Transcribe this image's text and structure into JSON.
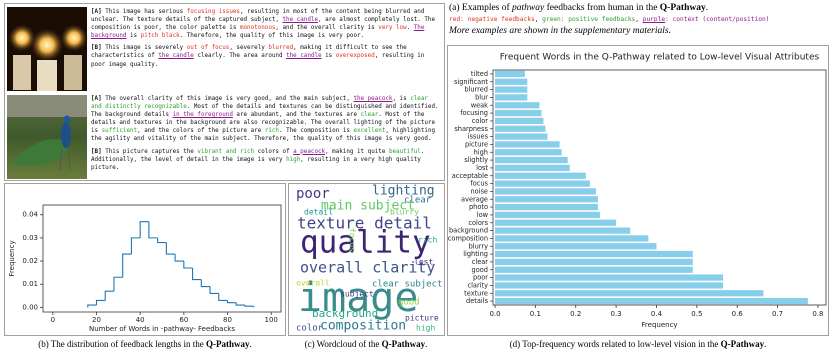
{
  "panel_a": {
    "caption": [
      {
        "text": "(a) Examples of "
      },
      {
        "text": "pathway",
        "style": "italic"
      },
      {
        "text": " feedbacks from human in the "
      },
      {
        "text": "Q-Pathway",
        "style": "bold"
      },
      {
        "text": "."
      }
    ],
    "legend": [
      {
        "text": "red: negative feedbacks",
        "kind": "negative"
      },
      {
        "text": ", "
      },
      {
        "text": "green: positive feedbacks",
        "kind": "positive"
      },
      {
        "text": ", "
      },
      {
        "text": "purple",
        "kind": "context"
      },
      {
        "text": ": context (content/position)",
        "kind": "context-plain"
      }
    ],
    "note": "More examples are shown in the supplementary materials.",
    "examples": [
      {
        "paragraphs": [
          {
            "label": "[A]",
            "segments": [
              {
                "text": "This image has serious "
              },
              {
                "text": "focusing issues",
                "kind": "negative"
              },
              {
                "text": ", resulting in most of the content being blurred and unclear. The texture details of the captured subject, "
              },
              {
                "text": "the candle",
                "kind": "context"
              },
              {
                "text": ", are almost completely lost. The composition is poor, the color palette is "
              },
              {
                "text": "monotonous",
                "kind": "negative"
              },
              {
                "text": ", and the overall clarity is "
              },
              {
                "text": "very low",
                "kind": "negative"
              },
              {
                "text": ". "
              },
              {
                "text": "The background",
                "kind": "context"
              },
              {
                "text": " is "
              },
              {
                "text": "pitch black",
                "kind": "negative"
              },
              {
                "text": ". Therefore, the quality of this image is very poor."
              }
            ]
          },
          {
            "label": "[B]",
            "segments": [
              {
                "text": "This image is severely "
              },
              {
                "text": "out of focus",
                "kind": "negative"
              },
              {
                "text": ", severely "
              },
              {
                "text": "blurred",
                "kind": "negative"
              },
              {
                "text": ", making it difficult to see the characteristics of "
              },
              {
                "text": "the candle",
                "kind": "context"
              },
              {
                "text": " clearly. The area around "
              },
              {
                "text": "the candle",
                "kind": "context"
              },
              {
                "text": " is "
              },
              {
                "text": "overexposed",
                "kind": "negative"
              },
              {
                "text": ", resulting in poor image quality."
              }
            ]
          }
        ]
      },
      {
        "paragraphs": [
          {
            "label": "[A]",
            "segments": [
              {
                "text": "The overall clarity of this image is very good, and the main subject, "
              },
              {
                "text": "the peacock",
                "kind": "context"
              },
              {
                "text": ", is "
              },
              {
                "text": "clear and distinctly recognizable",
                "kind": "positive"
              },
              {
                "text": ". Most of the details and textures can be distinguished and identified. The background details "
              },
              {
                "text": "in the foreground",
                "kind": "context"
              },
              {
                "text": " are abundant, and the textures are "
              },
              {
                "text": "clear",
                "kind": "positive"
              },
              {
                "text": ". Most of the details and textures in the background are also recognizable. The overall lighting of the picture is "
              },
              {
                "text": "sufficient",
                "kind": "positive"
              },
              {
                "text": ", and the colors of the picture are "
              },
              {
                "text": "rich",
                "kind": "positive"
              },
              {
                "text": ". The composition is "
              },
              {
                "text": "excellent",
                "kind": "positive"
              },
              {
                "text": ", highlighting the agility and vitality of the main subject. Therefore, the quality of this image is very good."
              }
            ]
          },
          {
            "label": "[B]",
            "segments": [
              {
                "text": "This picture captures the "
              },
              {
                "text": "vibrant and rich",
                "kind": "positive"
              },
              {
                "text": " colors of "
              },
              {
                "text": "a peacock",
                "kind": "context"
              },
              {
                "text": ", making it quite "
              },
              {
                "text": "beautiful",
                "kind": "positive"
              },
              {
                "text": ". Additionally, the level of detail in the image is very "
              },
              {
                "text": "high",
                "kind": "positive"
              },
              {
                "text": ", resulting in a very high quality picture."
              }
            ]
          }
        ]
      }
    ]
  },
  "chart_data": [
    {
      "type": "histogram",
      "color": "#1f77b4",
      "x_label": "Number of Words in -pathway- Feedbacks",
      "y_label": "Frequency",
      "bins": [
        16,
        20,
        24,
        28,
        32,
        36,
        40,
        44,
        48,
        52,
        56,
        60,
        64,
        68,
        72,
        76,
        80,
        84,
        88,
        92
      ],
      "values": [
        0.001,
        0.003,
        0.007,
        0.013,
        0.023,
        0.03,
        0.037,
        0.03,
        0.028,
        0.023,
        0.02,
        0.017,
        0.012,
        0.009,
        0.006,
        0.003,
        0.002,
        0.001,
        0.0005
      ],
      "xlim": [
        -4.5,
        104.5
      ],
      "xticks": [
        0,
        20,
        40,
        60,
        80,
        100
      ],
      "ylim": [
        -0.002,
        0.0442
      ],
      "yticks": [
        {
          "value": 0,
          "label": "0.00"
        },
        {
          "value": 0.01,
          "label": "0.01"
        },
        {
          "value": 0.02,
          "label": "0.02"
        },
        {
          "value": 0.03,
          "label": "0.03"
        },
        {
          "value": 0.04,
          "label": "0.04"
        }
      ],
      "caption": [
        {
          "text": "(b) The distribution of feedback lengths in the "
        },
        {
          "text": "Q-Pathway",
          "style": "bold"
        },
        {
          "text": "."
        }
      ]
    },
    {
      "type": "barh",
      "color": "#87ceeb",
      "title": "Frequent Words in the Q-Pathway related to Low-level Visual Attributes",
      "x_label": "Frequency",
      "categories": [
        "tilted",
        "significant",
        "blurred",
        "blur",
        "weak",
        "focusing",
        "color",
        "sharpness",
        "issues",
        "picture",
        "high",
        "slightly",
        "lost",
        "acceptable",
        "focus",
        "noise",
        "average",
        "photo",
        "low",
        "colors",
        "background",
        "composition",
        "blurry",
        "lighting",
        "clear",
        "good",
        "poor",
        "clarity",
        "texture",
        "details"
      ],
      "values": [
        0.074,
        0.08,
        0.08,
        0.08,
        0.11,
        0.115,
        0.12,
        0.125,
        0.13,
        0.16,
        0.165,
        0.18,
        0.185,
        0.225,
        0.235,
        0.25,
        0.255,
        0.255,
        0.26,
        0.3,
        0.335,
        0.38,
        0.4,
        0.49,
        0.49,
        0.49,
        0.565,
        0.565,
        0.665,
        0.775
      ],
      "xlim": [
        -0.005,
        0.82
      ],
      "xticks": [
        {
          "value": 0,
          "label": "0.0"
        },
        0.1,
        0.2,
        0.3,
        0.4,
        0.5,
        0.6,
        0.7,
        0.8
      ],
      "caption": [
        {
          "text": "(d) Top-frequency words related to low-level vision in the "
        },
        {
          "text": "Q-Pathway",
          "style": "bold"
        },
        {
          "text": "."
        }
      ]
    }
  ],
  "wordcloud": {
    "words": [
      "image",
      "quality",
      "texture detail",
      "overall clarity",
      "main subject",
      "composition",
      "lighting",
      "poor",
      "clear subject",
      "background",
      "color",
      "focus",
      "detail",
      "good",
      "picture",
      "overall",
      "blurry",
      "lost",
      "high",
      "rich",
      "clear",
      "subject"
    ],
    "caption": [
      {
        "text": "(c) Wordcloud of the "
      },
      {
        "text": "Q-Pathway",
        "style": "bold"
      },
      {
        "text": "."
      }
    ]
  }
}
